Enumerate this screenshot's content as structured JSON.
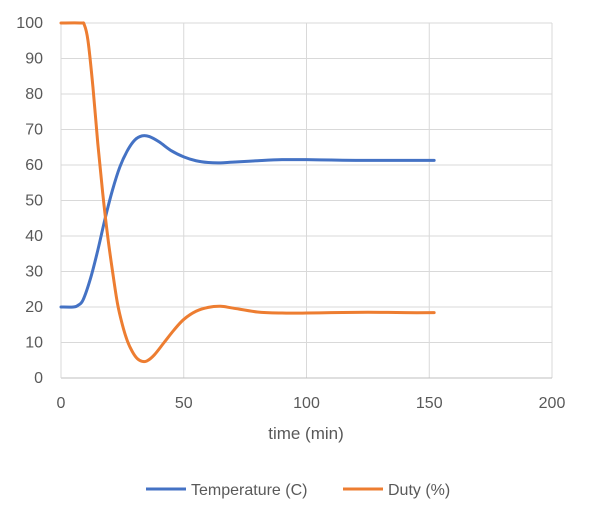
{
  "chart_data": {
    "type": "line",
    "title": "",
    "xlabel": "time (min)",
    "ylabel": "",
    "xlim": [
      0,
      200
    ],
    "ylim": [
      0,
      100
    ],
    "x_ticks": [
      0,
      50,
      100,
      150,
      200
    ],
    "y_ticks": [
      0,
      10,
      20,
      30,
      40,
      50,
      60,
      70,
      80,
      90,
      100
    ],
    "grid": true,
    "legend_position": "bottom",
    "series": [
      {
        "name": "Temperature (C)",
        "color": "#4472C4",
        "points": [
          [
            0,
            20
          ],
          [
            5,
            20
          ],
          [
            7,
            20.5
          ],
          [
            9,
            22
          ],
          [
            12,
            28
          ],
          [
            15,
            36
          ],
          [
            18,
            45
          ],
          [
            21,
            53
          ],
          [
            24,
            59.5
          ],
          [
            27,
            64
          ],
          [
            30,
            67
          ],
          [
            33,
            68.2
          ],
          [
            36,
            68
          ],
          [
            40,
            66.5
          ],
          [
            45,
            64
          ],
          [
            50,
            62.3
          ],
          [
            55,
            61.2
          ],
          [
            60,
            60.7
          ],
          [
            65,
            60.6
          ],
          [
            70,
            60.8
          ],
          [
            80,
            61.2
          ],
          [
            90,
            61.5
          ],
          [
            100,
            61.5
          ],
          [
            110,
            61.4
          ],
          [
            120,
            61.3
          ],
          [
            130,
            61.3
          ],
          [
            140,
            61.3
          ],
          [
            152,
            61.3
          ]
        ]
      },
      {
        "name": "Duty (%)",
        "color": "#ED7D31",
        "points": [
          [
            0,
            100
          ],
          [
            8,
            100
          ],
          [
            9.5,
            99.5
          ],
          [
            11,
            95
          ],
          [
            13,
            82
          ],
          [
            15,
            66
          ],
          [
            17,
            52
          ],
          [
            19,
            40
          ],
          [
            21,
            30
          ],
          [
            23,
            21
          ],
          [
            25,
            15
          ],
          [
            27,
            10.5
          ],
          [
            29,
            7.5
          ],
          [
            31,
            5.5
          ],
          [
            33,
            4.7
          ],
          [
            35,
            4.8
          ],
          [
            38,
            6.5
          ],
          [
            42,
            10
          ],
          [
            46,
            13.5
          ],
          [
            50,
            16.5
          ],
          [
            55,
            18.8
          ],
          [
            60,
            19.9
          ],
          [
            65,
            20.2
          ],
          [
            70,
            19.7
          ],
          [
            80,
            18.6
          ],
          [
            90,
            18.3
          ],
          [
            100,
            18.3
          ],
          [
            110,
            18.4
          ],
          [
            120,
            18.5
          ],
          [
            130,
            18.5
          ],
          [
            140,
            18.4
          ],
          [
            152,
            18.4
          ]
        ]
      }
    ]
  }
}
